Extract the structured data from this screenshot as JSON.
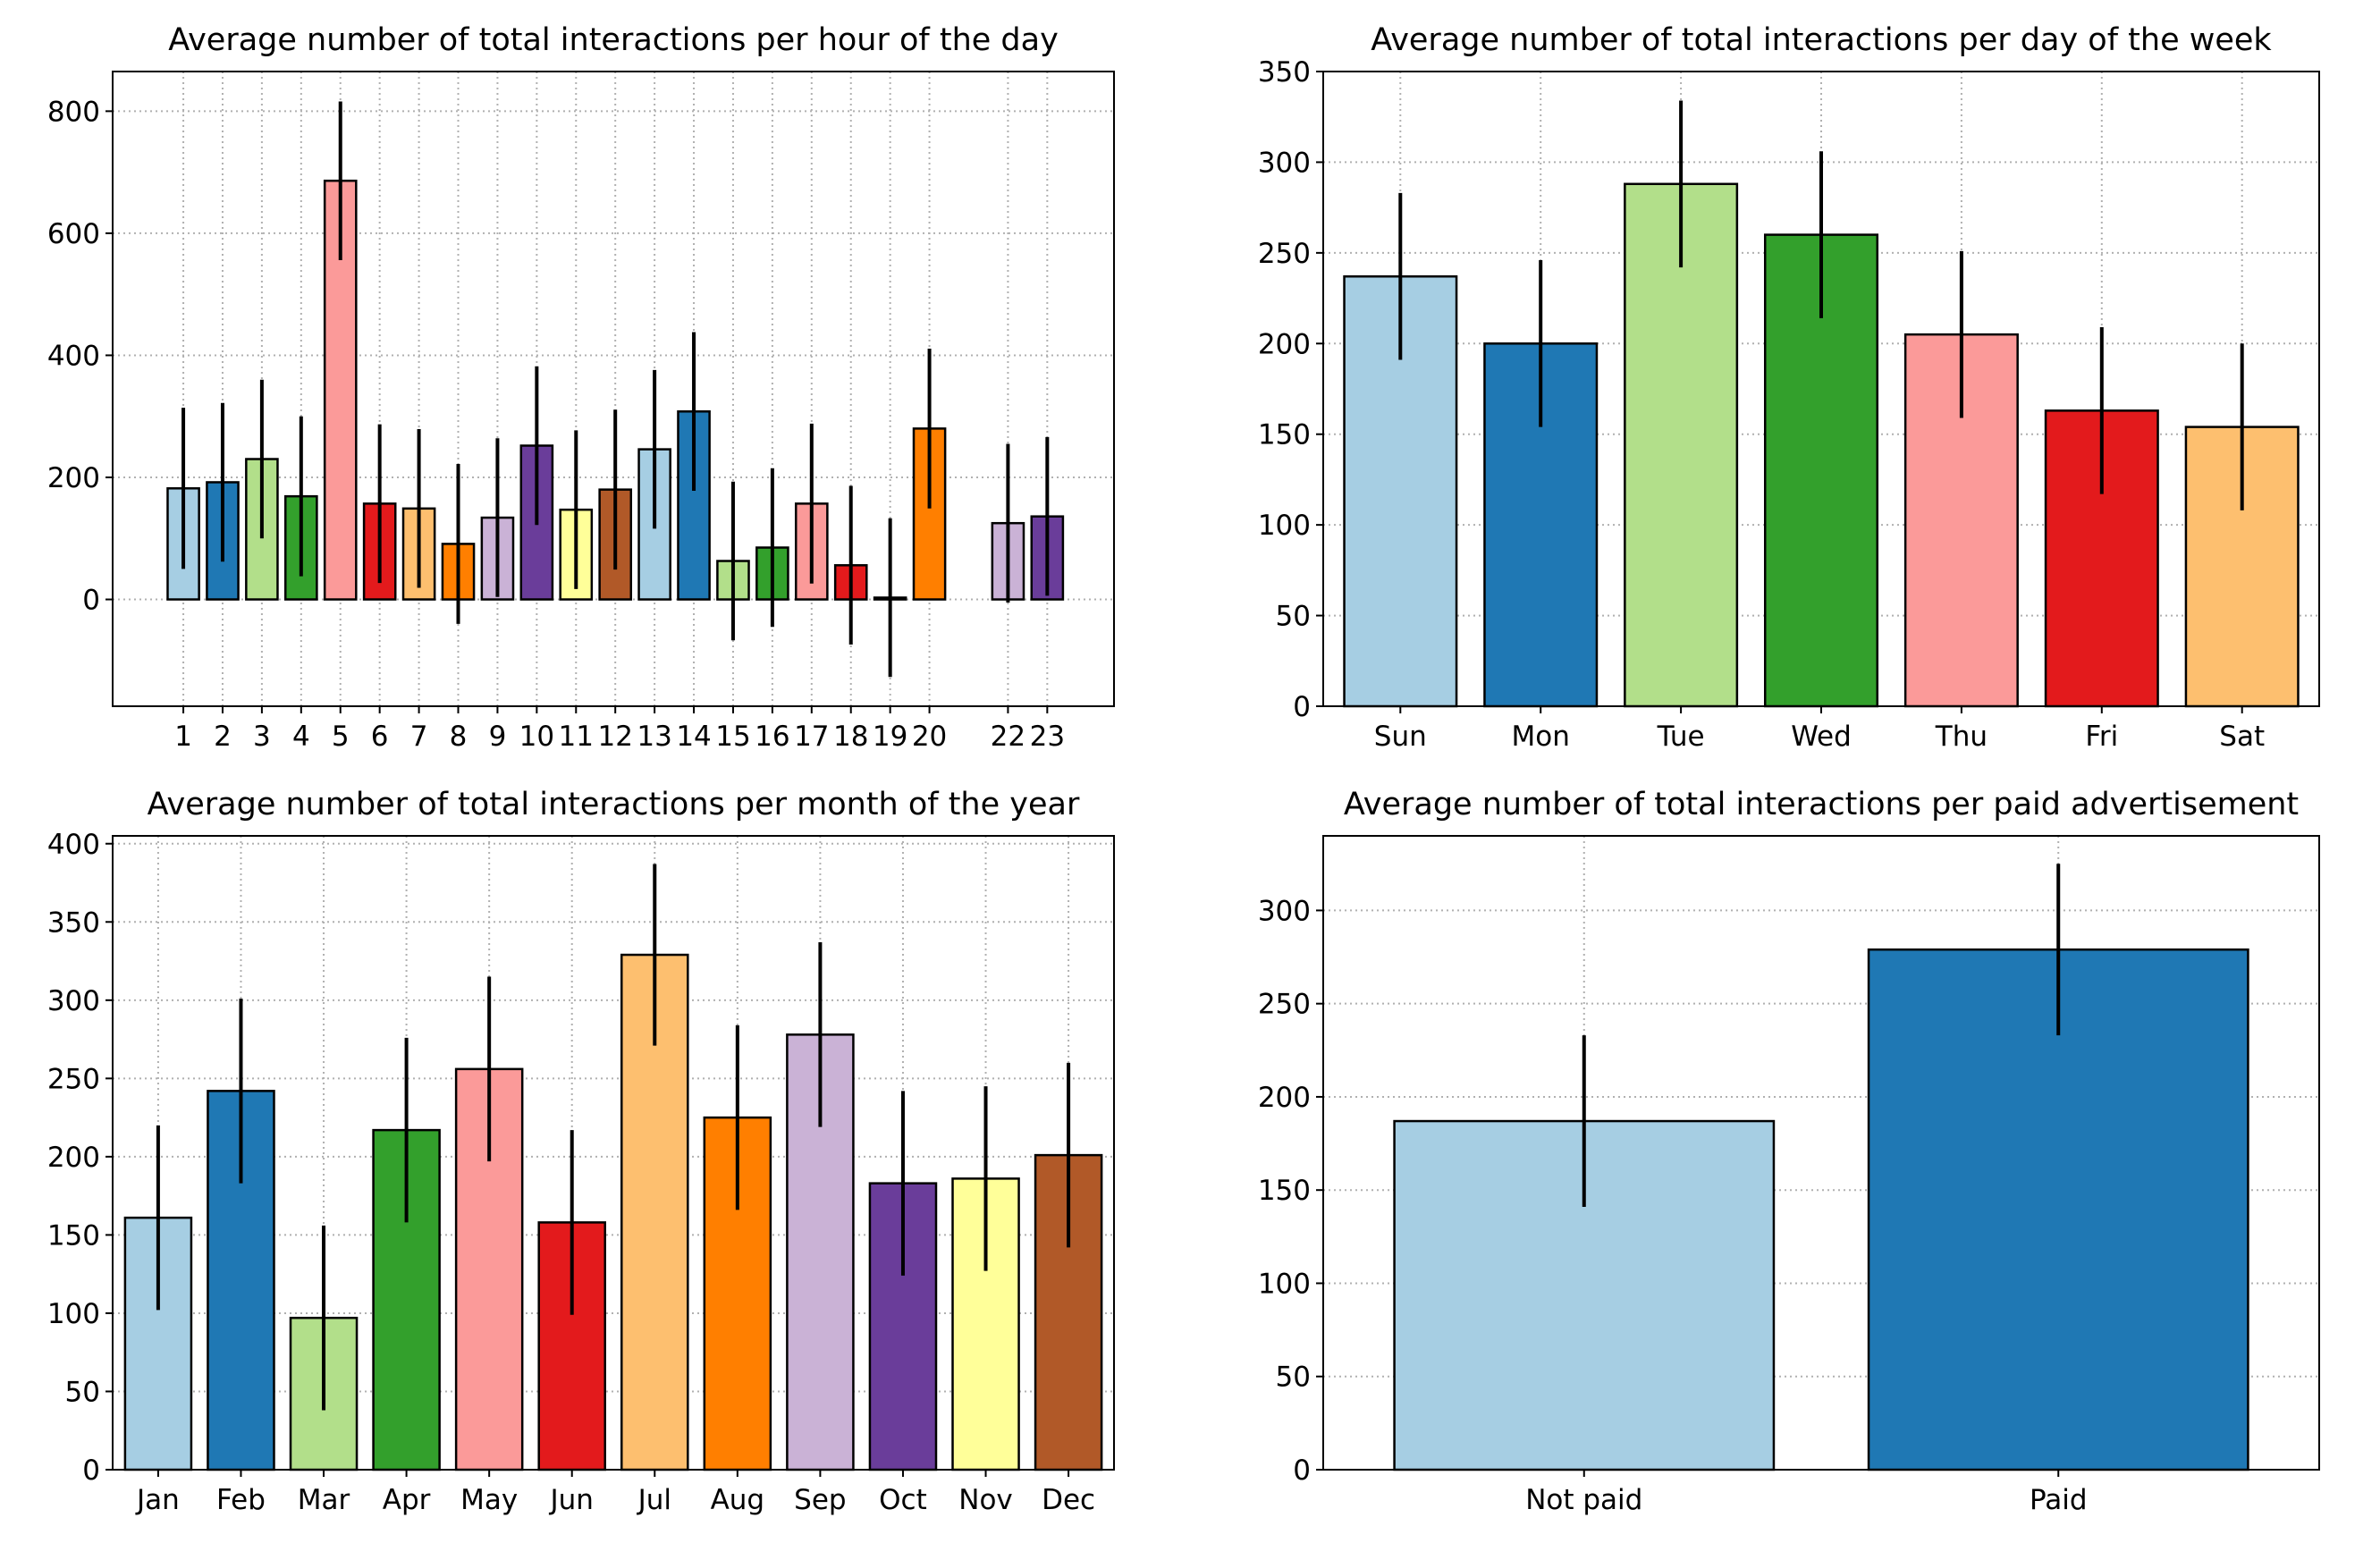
{
  "chart_data": [
    {
      "type": "bar",
      "title": "Average number of total interactions per hour of the day",
      "categories": [
        "1",
        "2",
        "3",
        "4",
        "5",
        "6",
        "7",
        "8",
        "9",
        "10",
        "11",
        "12",
        "13",
        "14",
        "15",
        "16",
        "17",
        "18",
        "19",
        "20",
        "22",
        "23"
      ],
      "x": [
        1,
        2,
        3,
        4,
        5,
        6,
        7,
        8,
        9,
        10,
        11,
        12,
        13,
        14,
        15,
        16,
        17,
        18,
        19,
        20,
        22,
        23
      ],
      "values": [
        182,
        192,
        230,
        169,
        686,
        157,
        149,
        91,
        134,
        252,
        147,
        180,
        246,
        308,
        63,
        85,
        157,
        56,
        3,
        280,
        125,
        136
      ],
      "errors": [
        132,
        130,
        130,
        131,
        130,
        130,
        130,
        131,
        130,
        130,
        130,
        131,
        130,
        130,
        130,
        130,
        131,
        130,
        130,
        131,
        130,
        130
      ],
      "ylim": [
        -175,
        865
      ],
      "xlim": [
        -0.8,
        24.7
      ],
      "yticks": [
        0,
        200,
        400,
        600,
        800
      ],
      "grid": true
    },
    {
      "type": "bar",
      "title": "Average number of total interactions per day of the week",
      "categories": [
        "Sun",
        "Mon",
        "Tue",
        "Wed",
        "Thu",
        "Fri",
        "Sat"
      ],
      "values": [
        237,
        200,
        288,
        260,
        205,
        163,
        154
      ],
      "errors": [
        46,
        46,
        46,
        46,
        46,
        46,
        46
      ],
      "ylim": [
        0,
        350
      ],
      "yticks": [
        0,
        50,
        100,
        150,
        200,
        250,
        300,
        350
      ],
      "grid": true
    },
    {
      "type": "bar",
      "title": "Average number of total interactions per month of the year",
      "categories": [
        "Jan",
        "Feb",
        "Mar",
        "Apr",
        "May",
        "Jun",
        "Jul",
        "Aug",
        "Sep",
        "Oct",
        "Nov",
        "Dec"
      ],
      "values": [
        161,
        242,
        97,
        217,
        256,
        158,
        329,
        225,
        278,
        183,
        186,
        201
      ],
      "errors": [
        59,
        59,
        59,
        59,
        59,
        59,
        58,
        59,
        59,
        59,
        59,
        59
      ],
      "ylim": [
        0,
        405
      ],
      "yticks": [
        0,
        50,
        100,
        150,
        200,
        250,
        300,
        350,
        400
      ],
      "grid": true
    },
    {
      "type": "bar",
      "title": "Average number of total interactions per paid advertisement",
      "categories": [
        "Not paid",
        "Paid"
      ],
      "values": [
        187,
        279
      ],
      "errors": [
        46,
        46
      ],
      "ylim": [
        0,
        340
      ],
      "yticks": [
        0,
        50,
        100,
        150,
        200,
        250,
        300
      ],
      "grid": true
    }
  ],
  "palette": [
    "#a6cee3",
    "#1f78b4",
    "#b2df8a",
    "#33a02c",
    "#fb9a99",
    "#e31a1c",
    "#fdbf6f",
    "#ff7f00",
    "#cab2d6",
    "#6a3d9a",
    "#ffff99",
    "#b15928"
  ]
}
